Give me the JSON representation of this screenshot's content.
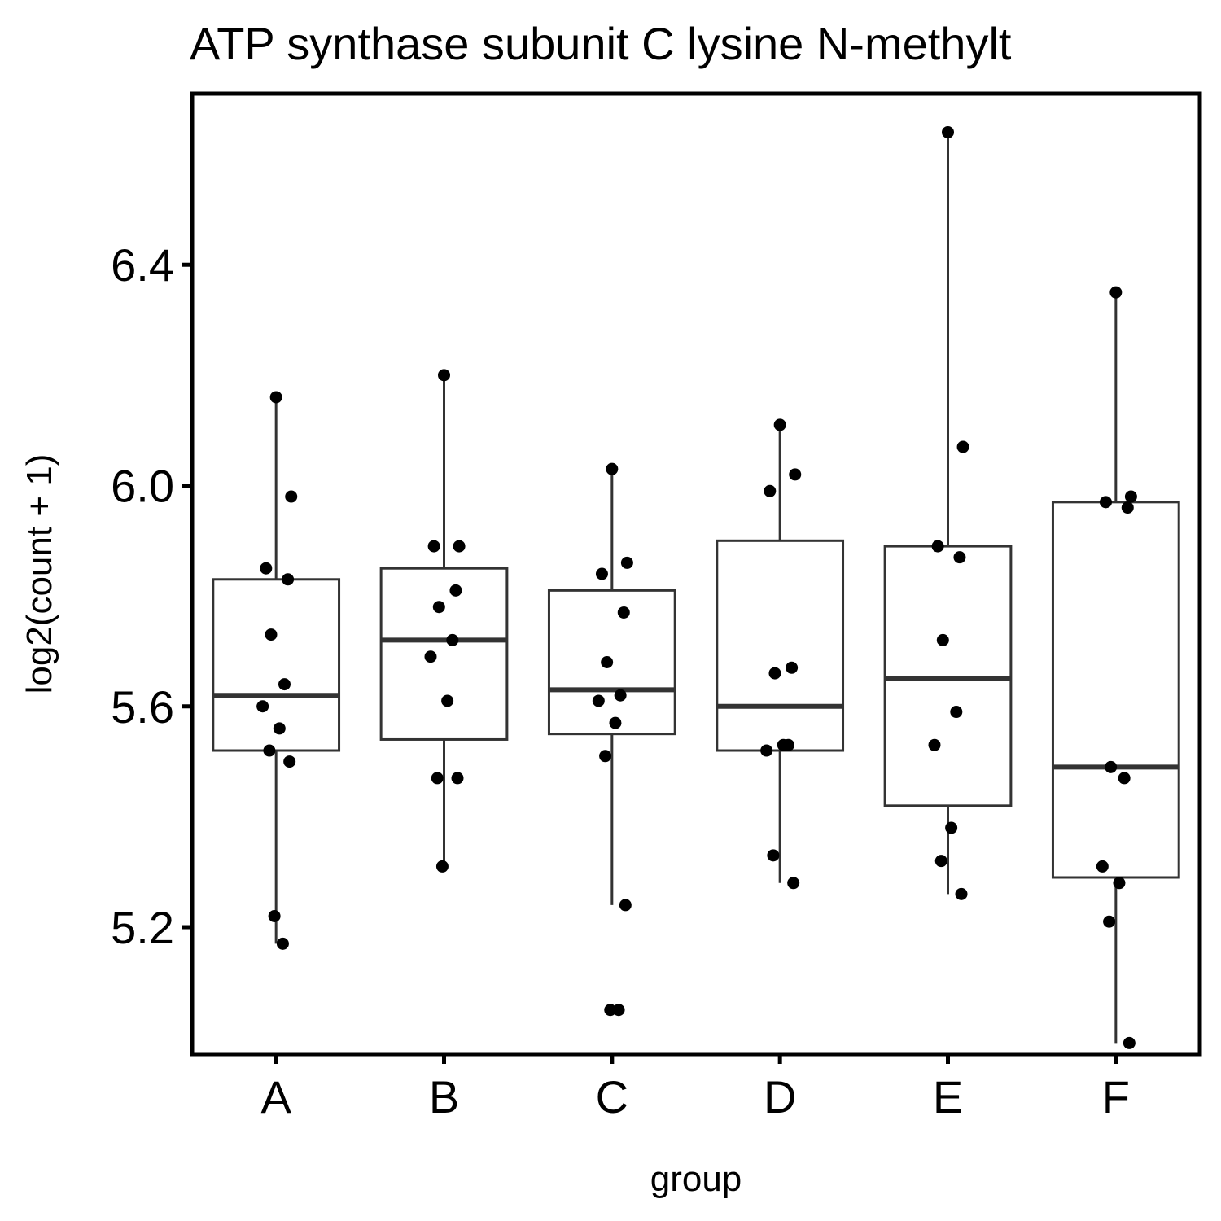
{
  "chart_data": {
    "type": "box",
    "title": "ATP synthase subunit C lysine N-methylt",
    "xlabel": "group",
    "ylabel": "log2(count + 1)",
    "ylim": [
      4.97,
      6.71
    ],
    "yticks": [
      "5.2",
      "5.6",
      "6.0",
      "6.4"
    ],
    "categories": [
      "A",
      "B",
      "C",
      "D",
      "E",
      "F"
    ],
    "grid": false,
    "boxes": [
      {
        "group": "A",
        "whisker_low": 5.17,
        "q1": 5.52,
        "median": 5.62,
        "q3": 5.83,
        "whisker_high": 6.16
      },
      {
        "group": "B",
        "whisker_low": 5.31,
        "q1": 5.54,
        "median": 5.72,
        "q3": 5.85,
        "whisker_high": 6.2
      },
      {
        "group": "C",
        "whisker_low": 5.24,
        "q1": 5.55,
        "median": 5.63,
        "q3": 5.81,
        "whisker_high": 6.03
      },
      {
        "group": "D",
        "whisker_low": 5.28,
        "q1": 5.52,
        "median": 5.6,
        "q3": 5.9,
        "whisker_high": 6.11
      },
      {
        "group": "E",
        "whisker_low": 5.26,
        "q1": 5.42,
        "median": 5.65,
        "q3": 5.89,
        "whisker_high": 6.64
      },
      {
        "group": "F",
        "whisker_low": 4.99,
        "q1": 5.29,
        "median": 5.49,
        "q3": 5.97,
        "whisker_high": 6.35
      }
    ],
    "points": [
      {
        "group": "A",
        "values": [
          6.16,
          5.98,
          5.85,
          5.83,
          5.73,
          5.64,
          5.6,
          5.56,
          5.52,
          5.5,
          5.22,
          5.17
        ]
      },
      {
        "group": "B",
        "values": [
          6.2,
          5.89,
          5.89,
          5.81,
          5.78,
          5.72,
          5.69,
          5.61,
          5.47,
          5.47,
          5.31
        ]
      },
      {
        "group": "C",
        "values": [
          6.03,
          5.86,
          5.84,
          5.77,
          5.68,
          5.62,
          5.61,
          5.57,
          5.51,
          5.24,
          5.05,
          5.05
        ]
      },
      {
        "group": "D",
        "values": [
          6.11,
          6.02,
          5.99,
          5.67,
          5.66,
          5.53,
          5.52,
          5.53,
          5.33,
          5.28
        ]
      },
      {
        "group": "E",
        "values": [
          6.64,
          6.07,
          5.89,
          5.87,
          5.72,
          5.59,
          5.53,
          5.38,
          5.32,
          5.26
        ]
      },
      {
        "group": "F",
        "values": [
          6.35,
          5.98,
          5.97,
          5.96,
          5.49,
          5.47,
          5.31,
          5.28,
          5.21,
          4.99
        ]
      }
    ],
    "colors": {
      "box": "#333333",
      "point": "#000000",
      "frame": "#000000"
    }
  }
}
